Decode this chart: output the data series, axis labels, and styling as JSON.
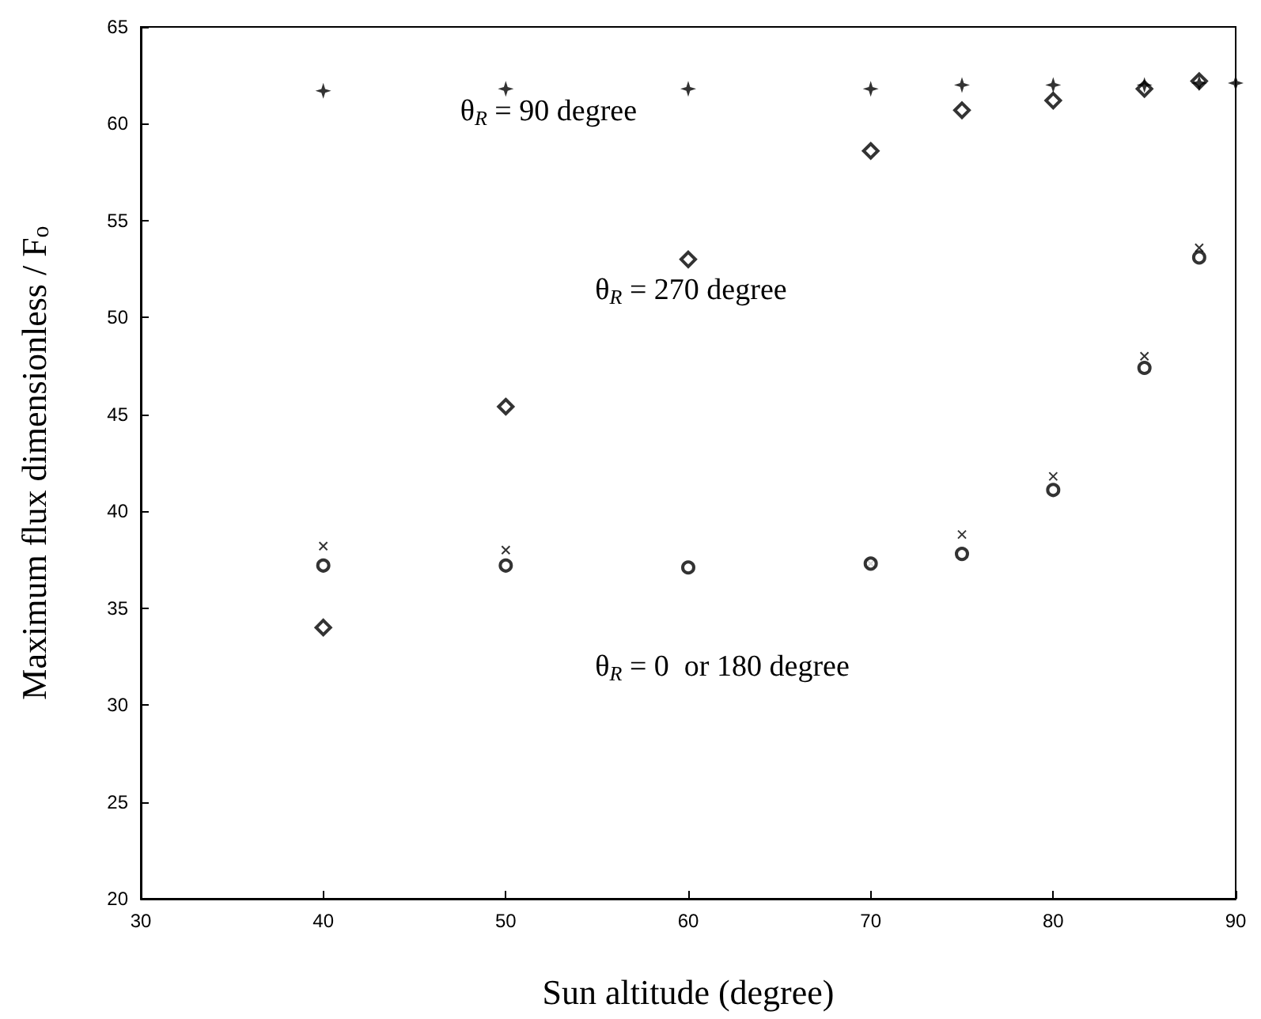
{
  "chart_data": {
    "type": "scatter",
    "xlabel": "Sun altitude (degree)",
    "ylabel": "Maximum flux dimensionless / F$_{o}$",
    "xlim": [
      30,
      90
    ],
    "xticks": [
      30,
      40,
      50,
      60,
      70,
      80,
      90
    ],
    "ylim": [
      20,
      65
    ],
    "yticks": [
      20,
      25,
      30,
      35,
      40,
      45,
      50,
      55,
      60,
      65
    ],
    "grid": false,
    "series": [
      {
        "marker": "star",
        "color": "#000000",
        "x": [
          40,
          50,
          60,
          70,
          75,
          80,
          85,
          88,
          90
        ],
        "values": [
          61.7,
          61.8,
          61.8,
          61.8,
          62,
          62,
          62,
          62.1,
          62.1
        ]
      },
      {
        "marker": "diamond",
        "color": "#000000",
        "x": [
          40,
          50,
          60,
          70,
          75,
          80,
          85,
          88
        ],
        "values": [
          34.0,
          45.4,
          53.0,
          58.6,
          60.7,
          61.2,
          61.8,
          62.2
        ]
      },
      {
        "marker": "circle",
        "color": "#000000",
        "x": [
          40,
          50,
          60,
          70,
          75,
          80,
          85,
          88
        ],
        "values": [
          37.2,
          37.2,
          37.1,
          37.3,
          37.8,
          41.1,
          47.4,
          53.1
        ]
      },
      {
        "marker": "cross",
        "color": "#000000",
        "x": [
          40,
          50,
          70,
          75,
          80,
          85,
          88
        ],
        "values": [
          38.2,
          38.0,
          37.3,
          38.8,
          41.8,
          48.0,
          53.6
        ]
      }
    ],
    "annotations": [
      "θ$_{R}$ = 90 degree",
      "θ$_{R}$ = 270 degree",
      "θ$_{R}$ = 0  or 180 degree"
    ]
  }
}
